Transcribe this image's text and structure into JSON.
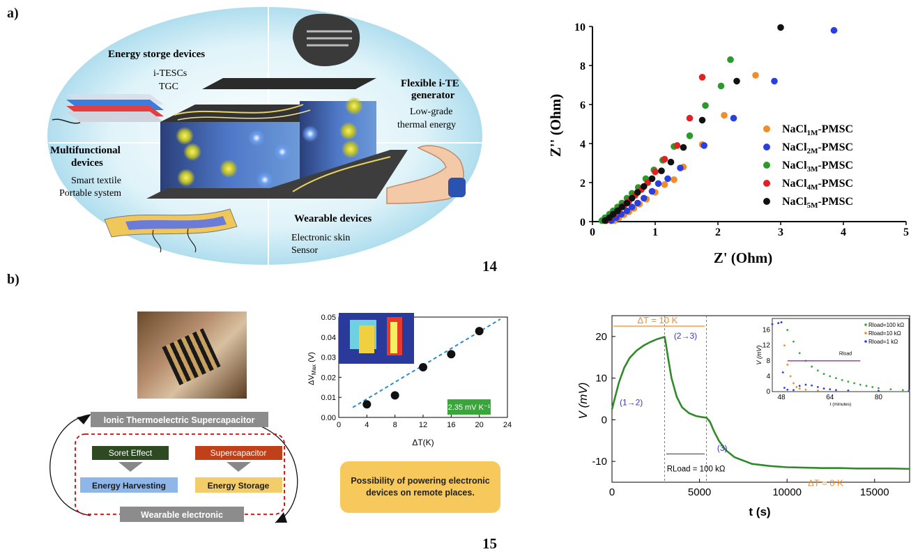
{
  "panels": {
    "a": "a)",
    "b": "b)"
  },
  "figure_numbers": {
    "top": "14",
    "bottom": "15"
  },
  "schematic_a": {
    "energy_storage_title": "Energy storge devices",
    "energy_storage_sub1": "i-TESCs",
    "energy_storage_sub2": "TGC",
    "flexible_title1": "Flexible i-TE",
    "flexible_title2": "generator",
    "flexible_sub1": "Low-grade",
    "flexible_sub2": "thermal energy",
    "multi_title1": "Multifunctional",
    "multi_title2": "devices",
    "multi_sub1": "Smart textile",
    "multi_sub2": "Portable system",
    "wearable_title": "Wearable devices",
    "wearable_sub1": "Electronic skin",
    "wearable_sub2": "Sensor",
    "colors": {
      "bg": "#bfe6f2",
      "ion_pos": "#d8d83a",
      "ion_neg": "#3a6fd8"
    }
  },
  "schematic_b": {
    "top_box": "Ionic Thermoelectric Supercapacitor",
    "soret": "Soret Effect",
    "supercap": "Supercapacitor",
    "harvest": "Energy Harvesting",
    "storage": "Energy Storage",
    "bottom_box": "Wearable electronic",
    "callout": "Possibility of powering electronic devices on remote places.",
    "colors": {
      "soret": "#2e4a22",
      "supercap": "#c0401a",
      "harvest": "#8fb6e8",
      "storage": "#f3cd69",
      "callout": "#f7c95c",
      "header": "#8c8c8c"
    }
  },
  "chart_data": [
    {
      "type": "scatter",
      "xlabel": "Z' (Ohm)",
      "ylabel": "Z'' (Ohm)",
      "xlim": [
        0,
        5
      ],
      "ylim": [
        0,
        10
      ],
      "xticks": [
        "0",
        "1",
        "2",
        "3",
        "4",
        "5"
      ],
      "yticks": [
        "0",
        "2",
        "4",
        "6",
        "8",
        "10"
      ],
      "legend_position": "right",
      "series": [
        {
          "name": "NaCl1M-PMSC",
          "name_base": "NaCl",
          "name_sub": "1M",
          "name_tail": "-PMSC",
          "color": "#f28c28",
          "x": [
            0.35,
            0.42,
            0.5,
            0.58,
            0.66,
            0.75,
            0.86,
            1.0,
            1.15,
            1.3,
            1.45,
            1.75,
            2.1,
            2.6
          ],
          "y": [
            0.05,
            0.18,
            0.35,
            0.5,
            0.68,
            0.9,
            1.15,
            1.5,
            1.9,
            2.15,
            2.8,
            3.95,
            5.45,
            7.5
          ]
        },
        {
          "name": "NaCl2M-PMSC",
          "name_base": "NaCl",
          "name_sub": "2M",
          "name_tail": "-PMSC",
          "color": "#2a3fe0",
          "x": [
            0.3,
            0.38,
            0.46,
            0.55,
            0.63,
            0.72,
            0.82,
            0.95,
            1.05,
            1.2,
            1.4,
            1.78,
            2.25,
            2.9,
            3.85
          ],
          "y": [
            0.05,
            0.2,
            0.38,
            0.55,
            0.75,
            0.95,
            1.2,
            1.55,
            1.95,
            2.2,
            2.75,
            3.9,
            5.3,
            7.2,
            9.8
          ]
        },
        {
          "name": "NaCl3M-PMSC",
          "name_base": "NaCl",
          "name_sub": "3M",
          "name_tail": "-PMSC",
          "color": "#2a9a2a",
          "x": [
            0.15,
            0.2,
            0.27,
            0.33,
            0.4,
            0.47,
            0.55,
            0.63,
            0.73,
            0.85,
            0.98,
            1.12,
            1.3,
            1.55,
            1.8,
            2.05,
            2.2
          ],
          "y": [
            0.05,
            0.2,
            0.38,
            0.55,
            0.75,
            0.95,
            1.2,
            1.45,
            1.75,
            2.2,
            2.65,
            3.15,
            3.85,
            4.4,
            5.95,
            6.95,
            8.3
          ]
        },
        {
          "name": "NaCl4M-PMSC",
          "name_base": "NaCl",
          "name_sub": "4M",
          "name_tail": "-PMSC",
          "color": "#e02222",
          "x": [
            0.22,
            0.28,
            0.35,
            0.42,
            0.5,
            0.58,
            0.68,
            0.78,
            0.88,
            1.0,
            1.15,
            1.35,
            1.55,
            1.75
          ],
          "y": [
            0.05,
            0.2,
            0.38,
            0.6,
            0.82,
            1.05,
            1.35,
            1.65,
            2.0,
            2.55,
            3.2,
            3.9,
            5.3,
            7.4
          ]
        },
        {
          "name": "NaCl5M-PMSC",
          "name_base": "NaCl",
          "name_sub": "5M",
          "name_tail": "-PMSC",
          "color": "#111111",
          "x": [
            0.2,
            0.27,
            0.33,
            0.4,
            0.47,
            0.55,
            0.63,
            0.72,
            0.82,
            0.95,
            1.1,
            1.25,
            1.45,
            1.75,
            2.3,
            3.0
          ],
          "y": [
            0.05,
            0.2,
            0.38,
            0.55,
            0.75,
            0.95,
            1.2,
            1.5,
            1.8,
            2.2,
            2.6,
            3.05,
            3.8,
            5.2,
            7.2,
            9.95
          ]
        }
      ]
    },
    {
      "type": "scatter",
      "xlabel": "ΔT(K)",
      "ylabel": "ΔVMax (V)",
      "ylabel_base": "ΔV",
      "ylabel_sub": "Max",
      "ylabel_tail": " (V)",
      "xlim": [
        0,
        24
      ],
      "ylim": [
        0,
        0.05
      ],
      "xticks": [
        "0",
        "4",
        "8",
        "12",
        "16",
        "20",
        "24"
      ],
      "yticks": [
        "0.00",
        "0.01",
        "0.02",
        "0.03",
        "0.04",
        "0.05"
      ],
      "fit_label": "2.35 mV K⁻¹",
      "x": [
        4,
        8,
        12,
        16,
        20
      ],
      "y": [
        0.0065,
        0.011,
        0.025,
        0.0315,
        0.043
      ],
      "fit": {
        "x": [
          2,
          23
        ],
        "y": [
          0.005,
          0.049
        ]
      }
    },
    {
      "type": "line",
      "xlabel": "t (s)",
      "ylabel": "V (mV)",
      "xlim": [
        0,
        17000
      ],
      "ylim": [
        -15,
        25
      ],
      "xticks": [
        "0",
        "5000",
        "10000",
        "15000"
      ],
      "yticks": [
        "-10",
        "0",
        "10",
        "20"
      ],
      "annotations": {
        "dt10": "ΔT = 10 K",
        "dt0": "ΔT = 0 K",
        "step12": "(1→2)",
        "step23": "(2→3)",
        "step3": "(3)",
        "rload": "RLoad = 100 kΩ"
      },
      "series": [
        {
          "color": "#2f8a2a",
          "x": [
            0,
            150,
            400,
            700,
            1000,
            1400,
            1800,
            2200,
            2600,
            3000,
            3050,
            3200,
            3400,
            3700,
            4000,
            4400,
            4800,
            5200,
            5400,
            5600,
            5800,
            6100,
            6500,
            7000,
            8000,
            9000,
            10000,
            11000,
            12000,
            13000,
            14000,
            15000,
            16000,
            17000
          ],
          "y": [
            2.5,
            5,
            9,
            12.5,
            14.8,
            16.6,
            17.8,
            18.7,
            19.4,
            19.9,
            19,
            15,
            10,
            5.5,
            3,
            1.6,
            0.9,
            0.6,
            0.5,
            -0.5,
            -2.5,
            -5,
            -7.3,
            -9,
            -10.6,
            -11.1,
            -11.4,
            -11.5,
            -11.6,
            -11.6,
            -11.7,
            -11.7,
            -11.7,
            -11.8
          ]
        }
      ],
      "inset": {
        "xlabel": "t (minutes)",
        "ylabel": "V (mV)",
        "xlim": [
          45,
          90
        ],
        "ylim": [
          0,
          19
        ],
        "xticks": [
          "48",
          "64",
          "80"
        ],
        "yticks": [
          "0",
          "4",
          "8",
          "12",
          "16"
        ],
        "legend": [
          "Rload=100 kΩ",
          "Rload=10 kΩ",
          "Rload=1 kΩ"
        ],
        "arrow_label": "Rload",
        "series": [
          {
            "name": "Rload=100 kΩ",
            "color": "#3aa53a",
            "x": [
              45,
              47,
              48,
              50,
              52,
              54,
              56,
              58,
              60,
              62,
              64,
              66,
              68,
              70,
              72,
              74,
              76,
              78,
              80,
              84,
              88,
              90
            ],
            "y": [
              17.5,
              17.8,
              18,
              16,
              13,
              10,
              8,
              6.5,
              5.5,
              4.6,
              4,
              3.5,
              3,
              2.6,
              2.2,
              1.8,
              1.5,
              1.2,
              0.9,
              0.6,
              0.4,
              0.3
            ]
          },
          {
            "name": "Rload=10 kΩ",
            "color": "#f28c28",
            "x": [
              45,
              47,
              48,
              49,
              50,
              51,
              52,
              53,
              54,
              56,
              60,
              70,
              80,
              90
            ],
            "y": [
              17.5,
              17.8,
              18,
              12,
              7,
              4,
              2.2,
              1.2,
              0.8,
              0.5,
              0.3,
              0.2,
              0.2,
              0.2
            ]
          },
          {
            "name": "Rload=1 kΩ",
            "color": "#2a3fe0",
            "x": [
              45,
              47,
              48,
              48.5,
              49,
              50,
              52,
              54,
              56,
              58,
              60,
              62,
              64,
              66,
              70,
              80,
              90
            ],
            "y": [
              17.5,
              17.8,
              18,
              5,
              1,
              0.5,
              0.4,
              1.5,
              1.8,
              1.6,
              1.2,
              0.8,
              0.6,
              0.4,
              0.3,
              0.2,
              0.2
            ]
          }
        ]
      }
    }
  ]
}
